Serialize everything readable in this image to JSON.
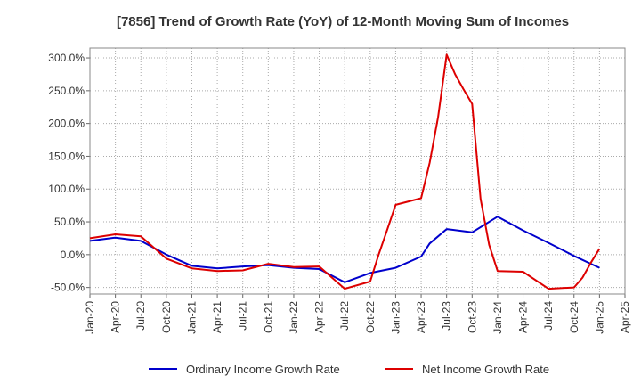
{
  "chart_data": {
    "type": "line",
    "title": "[7856]  Trend of Growth Rate (YoY) of 12-Month Moving Sum of Incomes",
    "xlabel": "",
    "ylabel": "",
    "x_ticks": [
      "Jan-20",
      "Apr-20",
      "Jul-20",
      "Oct-20",
      "Jan-21",
      "Apr-21",
      "Jul-21",
      "Oct-21",
      "Jan-22",
      "Apr-22",
      "Jul-22",
      "Oct-22",
      "Jan-23",
      "Apr-23",
      "Jul-23",
      "Oct-23",
      "Jan-24",
      "Apr-24",
      "Jul-24",
      "Oct-24",
      "Jan-25",
      "Apr-25"
    ],
    "y_ticks": [
      "300.0%",
      "250.0%",
      "200.0%",
      "150.0%",
      "100.0%",
      "50.0%",
      "0.0%",
      "-50.0%"
    ],
    "y_tick_values": [
      300,
      250,
      200,
      150,
      100,
      50,
      0,
      -50
    ],
    "ylim": [
      -60,
      315
    ],
    "grid": true,
    "legend_position": "bottom",
    "series": [
      {
        "name": "Ordinary Income Growth Rate",
        "color": "#0000cc",
        "points": [
          [
            "Jan-20",
            21
          ],
          [
            "Apr-20",
            26
          ],
          [
            "Jul-20",
            21
          ],
          [
            "Oct-20",
            0
          ],
          [
            "Jan-21",
            -17
          ],
          [
            "Apr-21",
            -21
          ],
          [
            "Jul-21",
            -18
          ],
          [
            "Oct-21",
            -16
          ],
          [
            "Jan-22",
            -20
          ],
          [
            "Apr-22",
            -22
          ],
          [
            "Jul-22",
            -42
          ],
          [
            "Oct-22",
            -28
          ],
          [
            "Jan-23",
            -20
          ],
          [
            "Apr-23",
            -3
          ],
          [
            "May-23",
            17
          ],
          [
            "Jul-23",
            39
          ],
          [
            "Oct-23",
            34
          ],
          [
            "Jan-24",
            58
          ],
          [
            "Apr-24",
            37
          ],
          [
            "Jul-24",
            18
          ],
          [
            "Oct-24",
            -2
          ],
          [
            "Jan-25",
            -20
          ]
        ]
      },
      {
        "name": "Net Income Growth Rate",
        "color": "#dd0000",
        "points": [
          [
            "Jan-20",
            25
          ],
          [
            "Apr-20",
            31
          ],
          [
            "Jul-20",
            28
          ],
          [
            "Oct-20",
            -6
          ],
          [
            "Jan-21",
            -21
          ],
          [
            "Apr-21",
            -25
          ],
          [
            "Jul-21",
            -24
          ],
          [
            "Oct-21",
            -14
          ],
          [
            "Jan-22",
            -19
          ],
          [
            "Apr-22",
            -18
          ],
          [
            "Jul-22",
            -52
          ],
          [
            "Oct-22",
            -41
          ],
          [
            "Nov-22",
            0
          ],
          [
            "Dec-22",
            38
          ],
          [
            "Jan-23",
            76
          ],
          [
            "Apr-23",
            86
          ],
          [
            "May-23",
            140
          ],
          [
            "Jun-23",
            210
          ],
          [
            "Jul-23",
            305
          ],
          [
            "Aug-23",
            275
          ],
          [
            "Sep-23",
            252
          ],
          [
            "Oct-23",
            230
          ],
          [
            "Nov-23",
            85
          ],
          [
            "Dec-23",
            15
          ],
          [
            "Jan-24",
            -25
          ],
          [
            "Apr-24",
            -26
          ],
          [
            "Jul-24",
            -52
          ],
          [
            "Oct-24",
            -50
          ],
          [
            "Nov-24",
            -35
          ],
          [
            "Dec-24",
            -12
          ],
          [
            "Jan-25",
            9
          ]
        ]
      }
    ]
  }
}
